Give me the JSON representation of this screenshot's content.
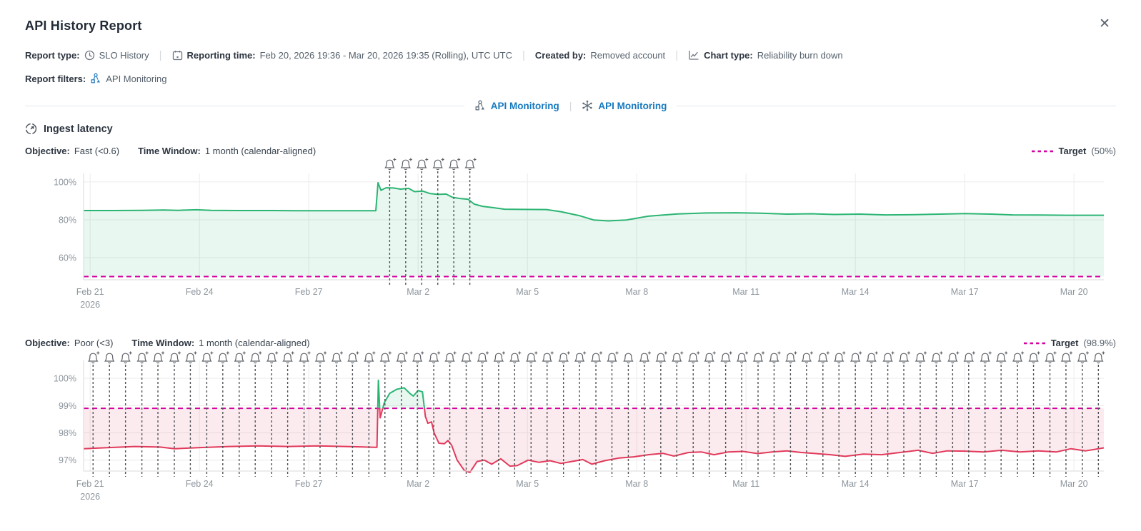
{
  "dialog": {
    "title": "API History Report",
    "close_glyph": "✕"
  },
  "meta": {
    "report_type_label": "Report type:",
    "report_type_value": "SLO History",
    "reporting_time_label": "Reporting time:",
    "reporting_time_value": "Feb 20, 2026 19:36 - Mar 20, 2026 19:35 (Rolling), UTC UTC",
    "created_by_label": "Created by:",
    "created_by_value": "Removed account",
    "chart_type_label": "Chart type:",
    "chart_type_value": "Reliability burn down",
    "report_filters_label": "Report filters:",
    "report_filters_value": "API Monitoring"
  },
  "nav": {
    "link1": "API Monitoring",
    "link2": "API Monitoring"
  },
  "section": {
    "title": "Ingest latency"
  },
  "colors": {
    "good_line": "#2bb573",
    "good_fill": "rgba(43,181,115,0.10)",
    "bad_line": "#e23a5c",
    "bad_fill": "rgba(226,58,92,0.10)",
    "target": "#d4009f",
    "link_blue": "#1779bf",
    "alert_icon": "#5f6368",
    "alert_line": "#4f5357",
    "grid": "#ebebeb",
    "axis": "#d9d9d9",
    "tick_text": "#8d959c"
  },
  "chart_data": [
    {
      "type": "area",
      "name": "Ingest latency - Fast objective reliability burn down",
      "objective": {
        "label": "Objective:",
        "value": "Fast (<0.6)"
      },
      "time_window": {
        "label": "Time Window:",
        "value": "1 month (calendar-aligned)"
      },
      "legend": {
        "label": "Target",
        "value": "(50%)"
      },
      "unit": "%",
      "target": 50,
      "x_domain": [
        0,
        28
      ],
      "y_domain": [
        48.3,
        104.5
      ],
      "y_ticks": [
        {
          "value": 100,
          "label": "100%"
        },
        {
          "value": 80,
          "label": "80%"
        },
        {
          "value": 60,
          "label": "60%"
        }
      ],
      "x_ticks": [
        {
          "day": 0.18,
          "label": "Feb 21",
          "sub": "2026"
        },
        {
          "day": 3.18,
          "label": "Feb 24"
        },
        {
          "day": 6.18,
          "label": "Feb 27"
        },
        {
          "day": 9.18,
          "label": "Mar 2"
        },
        {
          "day": 12.18,
          "label": "Mar 5"
        },
        {
          "day": 15.18,
          "label": "Mar 8"
        },
        {
          "day": 18.18,
          "label": "Mar 11"
        },
        {
          "day": 21.18,
          "label": "Mar 14"
        },
        {
          "day": 24.18,
          "label": "Mar 17"
        },
        {
          "day": 27.18,
          "label": "Mar 20"
        }
      ],
      "series": [
        [
          0,
          84.9
        ],
        [
          0.8,
          84.9
        ],
        [
          1.6,
          85.0
        ],
        [
          2.2,
          85.2
        ],
        [
          2.6,
          85.0
        ],
        [
          3.1,
          85.3
        ],
        [
          3.5,
          85.0
        ],
        [
          4.2,
          84.9
        ],
        [
          5.0,
          84.9
        ],
        [
          5.8,
          84.8
        ],
        [
          6.6,
          84.8
        ],
        [
          7.4,
          84.8
        ],
        [
          8.02,
          84.8
        ],
        [
          8.08,
          99.6
        ],
        [
          8.16,
          95.6
        ],
        [
          8.3,
          96.9
        ],
        [
          8.5,
          96.8
        ],
        [
          8.7,
          96.2
        ],
        [
          8.92,
          96.6
        ],
        [
          9.08,
          94.9
        ],
        [
          9.3,
          95.2
        ],
        [
          9.5,
          93.9
        ],
        [
          9.72,
          93.4
        ],
        [
          9.95,
          93.6
        ],
        [
          10.12,
          91.9
        ],
        [
          10.35,
          91.2
        ],
        [
          10.55,
          90.9
        ],
        [
          10.72,
          88.3
        ],
        [
          10.95,
          87.1
        ],
        [
          11.25,
          86.4
        ],
        [
          11.55,
          85.6
        ],
        [
          12.0,
          85.5
        ],
        [
          12.7,
          85.4
        ],
        [
          13.1,
          84.3
        ],
        [
          13.6,
          82.2
        ],
        [
          14.0,
          79.9
        ],
        [
          14.4,
          79.4
        ],
        [
          14.9,
          79.9
        ],
        [
          15.5,
          81.9
        ],
        [
          16.3,
          83.1
        ],
        [
          17.1,
          83.6
        ],
        [
          17.9,
          83.7
        ],
        [
          18.6,
          83.5
        ],
        [
          19.3,
          83.0
        ],
        [
          20.0,
          83.2
        ],
        [
          20.6,
          82.8
        ],
        [
          21.3,
          83.0
        ],
        [
          22.0,
          82.6
        ],
        [
          22.8,
          82.7
        ],
        [
          23.5,
          83.0
        ],
        [
          24.2,
          83.3
        ],
        [
          24.9,
          83.0
        ],
        [
          25.5,
          82.6
        ],
        [
          26.2,
          82.5
        ],
        [
          27.0,
          82.4
        ],
        [
          28.0,
          82.4
        ]
      ],
      "alerts": {
        "days": [
          8.4,
          8.84,
          9.28,
          9.72,
          10.16,
          10.6
        ],
        "no_plus_indices": []
      }
    },
    {
      "type": "area",
      "name": "Ingest latency - Poor objective reliability burn down",
      "objective": {
        "label": "Objective:",
        "value": "Poor (<3)"
      },
      "time_window": {
        "label": "Time Window:",
        "value": "1 month (calendar-aligned)"
      },
      "legend": {
        "label": "Target",
        "value": "(98.9%)"
      },
      "unit": "%",
      "target": 98.9,
      "x_domain": [
        0,
        28
      ],
      "y_domain": [
        96.6,
        100.655
      ],
      "y_ticks": [
        {
          "value": 100,
          "label": "100%"
        },
        {
          "value": 99,
          "label": "99%"
        },
        {
          "value": 98,
          "label": "98%"
        },
        {
          "value": 97,
          "label": "97%"
        }
      ],
      "x_ticks": [
        {
          "day": 0.18,
          "label": "Feb 21",
          "sub": "2026"
        },
        {
          "day": 3.18,
          "label": "Feb 24"
        },
        {
          "day": 6.18,
          "label": "Feb 27"
        },
        {
          "day": 9.18,
          "label": "Mar 2"
        },
        {
          "day": 12.18,
          "label": "Mar 5"
        },
        {
          "day": 15.18,
          "label": "Mar 8"
        },
        {
          "day": 18.18,
          "label": "Mar 11"
        },
        {
          "day": 21.18,
          "label": "Mar 14"
        },
        {
          "day": 24.18,
          "label": "Mar 17"
        },
        {
          "day": 27.18,
          "label": "Mar 20"
        }
      ],
      "series": [
        [
          0,
          97.42
        ],
        [
          0.7,
          97.46
        ],
        [
          1.4,
          97.5
        ],
        [
          2.1,
          97.48
        ],
        [
          2.5,
          97.42
        ],
        [
          3.2,
          97.46
        ],
        [
          4.0,
          97.5
        ],
        [
          4.8,
          97.52
        ],
        [
          5.6,
          97.5
        ],
        [
          6.4,
          97.52
        ],
        [
          7.2,
          97.5
        ],
        [
          8.0,
          97.47
        ],
        [
          8.05,
          97.47
        ],
        [
          8.09,
          99.93
        ],
        [
          8.14,
          98.55
        ],
        [
          8.25,
          99.1
        ],
        [
          8.4,
          99.45
        ],
        [
          8.6,
          99.6
        ],
        [
          8.8,
          99.65
        ],
        [
          8.95,
          99.45
        ],
        [
          9.05,
          99.35
        ],
        [
          9.18,
          99.55
        ],
        [
          9.3,
          99.5
        ],
        [
          9.38,
          98.6
        ],
        [
          9.45,
          98.35
        ],
        [
          9.55,
          98.4
        ],
        [
          9.62,
          98.0
        ],
        [
          9.75,
          97.62
        ],
        [
          9.9,
          97.6
        ],
        [
          10.0,
          97.72
        ],
        [
          10.1,
          97.55
        ],
        [
          10.25,
          97.0
        ],
        [
          10.45,
          96.62
        ],
        [
          10.6,
          96.55
        ],
        [
          10.8,
          96.95
        ],
        [
          11.0,
          97.0
        ],
        [
          11.2,
          96.85
        ],
        [
          11.45,
          97.05
        ],
        [
          11.7,
          96.78
        ],
        [
          11.9,
          96.8
        ],
        [
          12.2,
          97.0
        ],
        [
          12.5,
          96.92
        ],
        [
          12.8,
          96.98
        ],
        [
          13.1,
          96.88
        ],
        [
          13.4,
          96.95
        ],
        [
          13.7,
          97.02
        ],
        [
          13.95,
          96.85
        ],
        [
          14.3,
          96.98
        ],
        [
          14.7,
          97.08
        ],
        [
          15.1,
          97.12
        ],
        [
          15.5,
          97.2
        ],
        [
          15.9,
          97.25
        ],
        [
          16.2,
          97.15
        ],
        [
          16.6,
          97.28
        ],
        [
          16.95,
          97.3
        ],
        [
          17.3,
          97.2
        ],
        [
          17.7,
          97.3
        ],
        [
          18.1,
          97.32
        ],
        [
          18.5,
          97.24
        ],
        [
          18.9,
          97.3
        ],
        [
          19.3,
          97.34
        ],
        [
          19.7,
          97.28
        ],
        [
          20.1,
          97.24
        ],
        [
          20.5,
          97.2
        ],
        [
          20.9,
          97.14
        ],
        [
          21.4,
          97.22
        ],
        [
          21.9,
          97.2
        ],
        [
          22.4,
          97.28
        ],
        [
          22.9,
          97.36
        ],
        [
          23.3,
          97.25
        ],
        [
          23.7,
          97.34
        ],
        [
          24.2,
          97.33
        ],
        [
          24.7,
          97.3
        ],
        [
          25.2,
          97.36
        ],
        [
          25.7,
          97.3
        ],
        [
          26.2,
          97.34
        ],
        [
          26.7,
          97.3
        ],
        [
          27.1,
          97.42
        ],
        [
          27.5,
          97.34
        ],
        [
          28.0,
          97.45
        ]
      ],
      "alerts": {
        "days": [
          0.26,
          0.71,
          1.15,
          1.6,
          2.04,
          2.49,
          2.93,
          3.38,
          3.82,
          4.27,
          4.71,
          5.16,
          5.6,
          6.05,
          6.49,
          6.94,
          7.38,
          7.83,
          8.27,
          8.72,
          9.16,
          9.61,
          10.05,
          10.5,
          10.94,
          11.39,
          11.83,
          12.28,
          12.72,
          13.17,
          13.61,
          14.06,
          14.5,
          14.95,
          15.39,
          15.84,
          16.28,
          16.73,
          17.17,
          17.62,
          18.06,
          18.51,
          18.95,
          19.4,
          19.84,
          20.29,
          20.73,
          21.18,
          21.62,
          22.07,
          22.51,
          22.96,
          23.4,
          23.85,
          24.29,
          24.74,
          25.18,
          25.63,
          26.07,
          26.52,
          26.96,
          27.41,
          27.85
        ],
        "no_plus_indices": [
          1,
          33
        ]
      }
    }
  ]
}
